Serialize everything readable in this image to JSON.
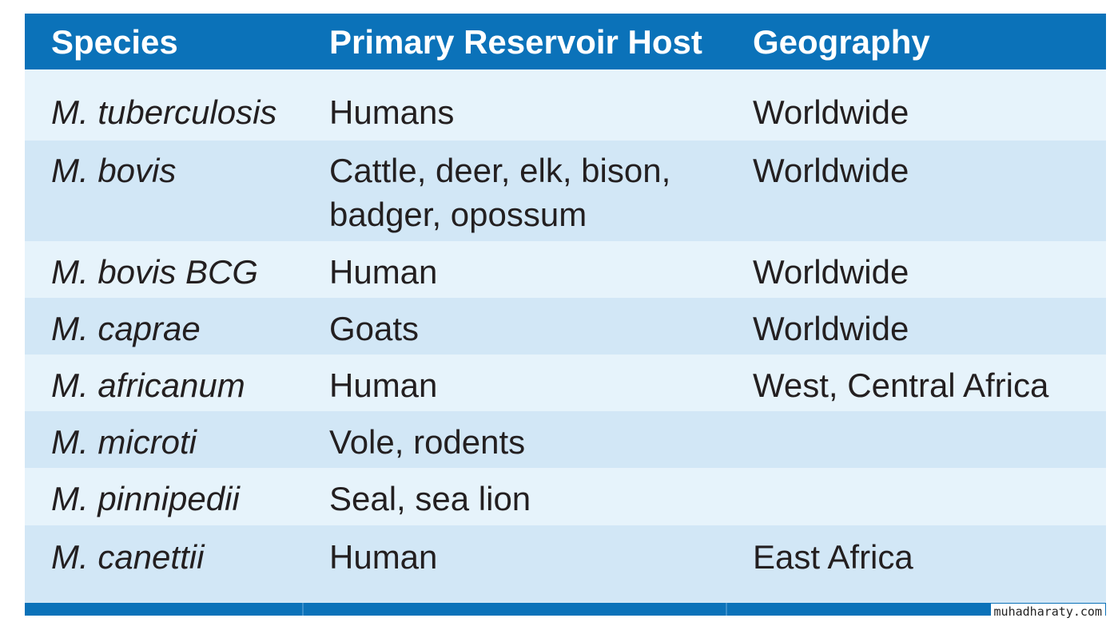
{
  "table": {
    "headers": [
      "Species",
      "Primary Reservoir Host",
      "Geography"
    ],
    "rows": [
      {
        "species": "M. tuberculosis",
        "host": "Humans",
        "geography": "Worldwide"
      },
      {
        "species": "M. bovis",
        "host_line1": "Cattle, deer, elk, bison,",
        "host_line2": "badger, opossum",
        "geography": "Worldwide"
      },
      {
        "species": "M. bovis BCG",
        "host": "Human",
        "geography": "Worldwide"
      },
      {
        "species": "M. caprae",
        "host": "Goats",
        "geography": "Worldwide"
      },
      {
        "species": "M. africanum",
        "host": "Human",
        "geography": "West, Central Africa"
      },
      {
        "species": "M. microti",
        "host": "Vole, rodents",
        "geography": ""
      },
      {
        "species": "M. pinnipedii",
        "host": "Seal, sea lion",
        "geography": ""
      },
      {
        "species": "M. canettii",
        "host": "Human",
        "geography": "East Africa"
      }
    ]
  },
  "watermark": "muhadharaty.com",
  "colors": {
    "header": "#0b72b9",
    "row_light": "#e6f3fb",
    "row_dark": "#d2e7f6",
    "text": "#231f20"
  }
}
